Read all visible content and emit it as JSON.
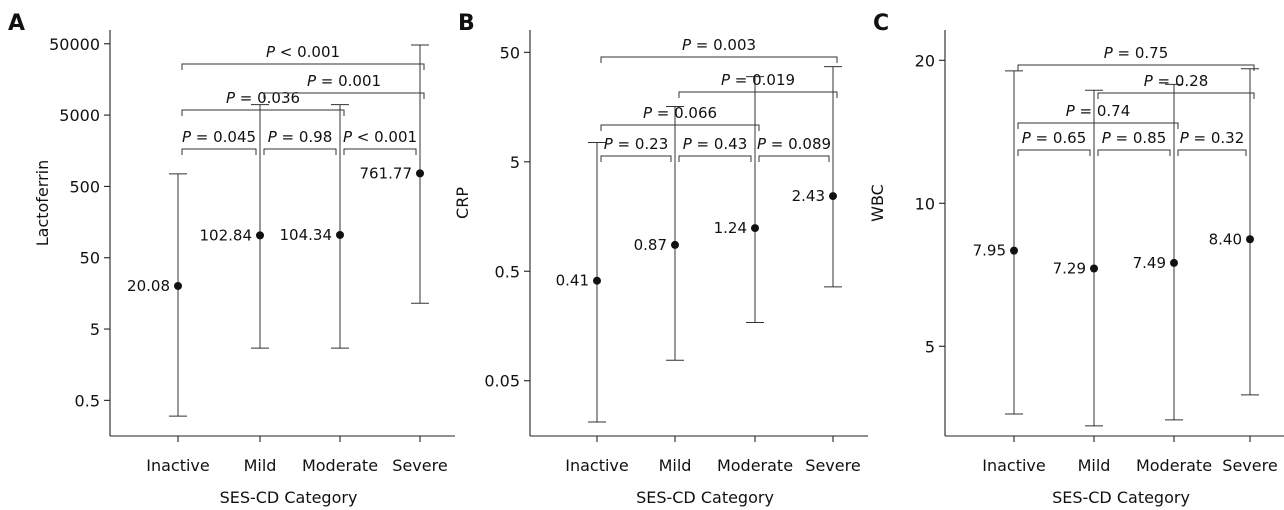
{
  "chart_data": [
    {
      "type": "scatter",
      "panel": "A",
      "ylabel": "Lactoferrin",
      "xlabel": "SES-CD Category",
      "yscale": "log",
      "ylim": [
        0.18,
        78000
      ],
      "yticks": [
        0.5,
        5,
        50,
        500,
        5000,
        50000
      ],
      "ytick_labels": [
        "0.5",
        "5",
        "50",
        "500",
        "5000",
        "50000"
      ],
      "categories": [
        "Inactive",
        "Mild",
        "Moderate",
        "Severe"
      ],
      "points": [
        {
          "category": "Inactive",
          "value": 20.08,
          "label": "20.08",
          "lower": 0.3,
          "upper": 750
        },
        {
          "category": "Mild",
          "value": 102.84,
          "label": "102.84",
          "lower": 2.7,
          "upper": 7000
        },
        {
          "category": "Moderate",
          "value": 104.34,
          "label": "104.34",
          "lower": 2.7,
          "upper": 7000
        },
        {
          "category": "Severe",
          "value": 761.77,
          "label": "761.77",
          "lower": 11.5,
          "upper": 48000
        }
      ],
      "comparisons": [
        {
          "from": "Inactive",
          "to": "Mild",
          "p": "0.045",
          "rel": "=",
          "level": 0
        },
        {
          "from": "Mild",
          "to": "Moderate",
          "p": "0.98",
          "rel": "=",
          "level": 0
        },
        {
          "from": "Moderate",
          "to": "Severe",
          "p": "0.001",
          "rel": "<",
          "level": 0
        },
        {
          "from": "Inactive",
          "to": "Moderate",
          "p": "0.036",
          "rel": "=",
          "level": 1
        },
        {
          "from": "Mild",
          "to": "Severe",
          "p": "0.001",
          "rel": "=",
          "level": 2
        },
        {
          "from": "Inactive",
          "to": "Severe",
          "p": "0.001",
          "rel": "<",
          "level": 3
        }
      ]
    },
    {
      "type": "scatter",
      "panel": "B",
      "ylabel": "CRP",
      "xlabel": "SES-CD Category",
      "yscale": "log",
      "ylim": [
        0.017,
        80
      ],
      "yticks": [
        0.05,
        0.5,
        5,
        50
      ],
      "ytick_labels": [
        "0.05",
        "0.5",
        "5",
        "50"
      ],
      "categories": [
        "Inactive",
        "Mild",
        "Moderate",
        "Severe"
      ],
      "points": [
        {
          "category": "Inactive",
          "value": 0.41,
          "label": "0.41",
          "lower": 0.021,
          "upper": 7.5
        },
        {
          "category": "Mild",
          "value": 0.87,
          "label": "0.87",
          "lower": 0.077,
          "upper": 16
        },
        {
          "category": "Moderate",
          "value": 1.24,
          "label": "1.24",
          "lower": 0.17,
          "upper": 30
        },
        {
          "category": "Severe",
          "value": 2.43,
          "label": "2.43",
          "lower": 0.36,
          "upper": 37
        }
      ],
      "comparisons": [
        {
          "from": "Inactive",
          "to": "Mild",
          "p": "0.23",
          "rel": "=",
          "level": 0
        },
        {
          "from": "Mild",
          "to": "Moderate",
          "p": "0.43",
          "rel": "=",
          "level": 0
        },
        {
          "from": "Moderate",
          "to": "Severe",
          "p": "0.089",
          "rel": "=",
          "level": 0
        },
        {
          "from": "Inactive",
          "to": "Moderate",
          "p": "0.066",
          "rel": "=",
          "level": 1
        },
        {
          "from": "Mild",
          "to": "Severe",
          "p": "0.019",
          "rel": "=",
          "level": 2
        },
        {
          "from": "Inactive",
          "to": "Severe",
          "p": "0.003",
          "rel": "=",
          "level": 3
        }
      ]
    },
    {
      "type": "scatter",
      "panel": "C",
      "ylabel": "WBC",
      "xlabel": "SES-CD Category",
      "yscale": "log",
      "ylim": [
        3.3,
        22.5
      ],
      "yticks": [
        5,
        10,
        20
      ],
      "ytick_labels": [
        "5",
        "10",
        "20"
      ],
      "categories": [
        "Inactive",
        "Mild",
        "Moderate",
        "Severe"
      ],
      "points": [
        {
          "category": "Inactive",
          "value": 7.95,
          "label": "7.95",
          "lower": 3.6,
          "upper": 19
        },
        {
          "category": "Mild",
          "value": 7.29,
          "label": "7.29",
          "lower": 3.4,
          "upper": 17.3
        },
        {
          "category": "Moderate",
          "value": 7.49,
          "label": "7.49",
          "lower": 3.5,
          "upper": 17.8
        },
        {
          "category": "Severe",
          "value": 8.4,
          "label": "8.40",
          "lower": 3.95,
          "upper": 19.2
        }
      ],
      "comparisons": [
        {
          "from": "Inactive",
          "to": "Mild",
          "p": "0.65",
          "rel": "=",
          "level": 0
        },
        {
          "from": "Mild",
          "to": "Moderate",
          "p": "0.85",
          "rel": "=",
          "level": 0
        },
        {
          "from": "Moderate",
          "to": "Severe",
          "p": "0.32",
          "rel": "=",
          "level": 0
        },
        {
          "from": "Inactive",
          "to": "Moderate",
          "p": "0.74",
          "rel": "=",
          "level": 1
        },
        {
          "from": "Mild",
          "to": "Severe",
          "p": "0.28",
          "rel": "=",
          "level": 2
        },
        {
          "from": "Inactive",
          "to": "Severe",
          "p": "0.75",
          "rel": "=",
          "level": 3
        }
      ]
    }
  ]
}
